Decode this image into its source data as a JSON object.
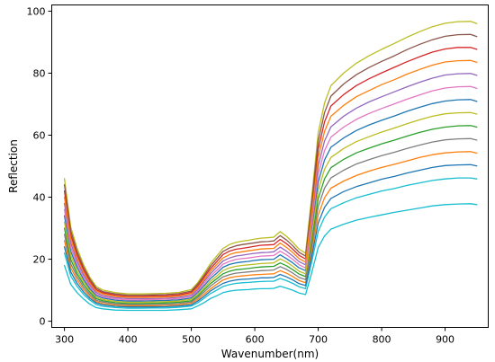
{
  "chart_data": {
    "type": "line",
    "xlabel": "Wavenumber(nm)",
    "ylabel": "Reflection",
    "xlim": [
      280,
      968
    ],
    "ylim": [
      -2,
      102
    ],
    "xticks": [
      300,
      400,
      500,
      600,
      700,
      800,
      900
    ],
    "yticks": [
      0,
      20,
      40,
      60,
      80,
      100
    ],
    "grid": false,
    "legend": "none",
    "x": [
      300,
      310,
      320,
      330,
      340,
      350,
      360,
      380,
      400,
      420,
      440,
      460,
      480,
      500,
      510,
      520,
      530,
      540,
      550,
      560,
      570,
      580,
      590,
      600,
      610,
      620,
      630,
      640,
      650,
      660,
      670,
      680,
      690,
      700,
      710,
      720,
      740,
      760,
      780,
      800,
      820,
      840,
      860,
      880,
      900,
      920,
      940,
      950
    ],
    "series": [
      {
        "color": "#bcbd22",
        "values": [
          46.0,
          30.4,
          23.5,
          18.3,
          14.2,
          11.2,
          10.1,
          9.2,
          8.8,
          8.8,
          8.9,
          9.0,
          9.3,
          10.2,
          12.4,
          15.4,
          18.5,
          21.0,
          23.5,
          24.7,
          25.4,
          25.8,
          26.1,
          26.5,
          26.8,
          26.9,
          27.1,
          28.9,
          27.4,
          25.4,
          23.2,
          22.0,
          40.5,
          60.8,
          70.4,
          76.0,
          80.0,
          83.2,
          85.6,
          87.7,
          89.6,
          91.6,
          93.4,
          95.0,
          96.1,
          96.6,
          96.7,
          96.0
        ]
      },
      {
        "color": "#d62728",
        "values": [
          42.0,
          27.8,
          21.4,
          16.7,
          12.9,
          10.2,
          9.2,
          8.4,
          8.0,
          8.0,
          8.1,
          8.2,
          8.5,
          9.3,
          11.3,
          14.1,
          16.9,
          19.2,
          21.5,
          22.6,
          23.2,
          23.5,
          23.8,
          24.2,
          24.5,
          24.6,
          24.7,
          26.4,
          25.0,
          23.2,
          21.2,
          20.1,
          37.0,
          55.5,
          64.3,
          69.4,
          73.1,
          76.0,
          78.2,
          80.1,
          81.9,
          83.7,
          85.3,
          86.8,
          87.8,
          88.3,
          88.3,
          87.7
        ]
      },
      {
        "color": "#9467bd",
        "values": [
          38.0,
          25.2,
          19.4,
          15.1,
          11.7,
          9.3,
          8.3,
          7.6,
          7.3,
          7.3,
          7.3,
          7.4,
          7.7,
          8.4,
          10.2,
          12.8,
          15.3,
          17.4,
          19.4,
          20.4,
          21.0,
          21.3,
          21.6,
          21.9,
          22.1,
          22.2,
          22.4,
          23.9,
          22.6,
          21.0,
          19.2,
          18.2,
          33.4,
          50.2,
          58.1,
          62.7,
          66.1,
          68.7,
          70.7,
          72.4,
          74.0,
          75.6,
          77.1,
          78.4,
          79.4,
          79.8,
          79.9,
          79.3
        ]
      },
      {
        "color": "#1f77b4",
        "values": [
          34.0,
          22.5,
          17.4,
          13.5,
          10.5,
          8.3,
          7.5,
          6.8,
          6.5,
          6.5,
          6.6,
          6.7,
          6.9,
          7.5,
          9.2,
          11.4,
          13.7,
          15.5,
          17.4,
          18.3,
          18.8,
          19.1,
          19.3,
          19.6,
          19.8,
          19.9,
          20.0,
          21.4,
          20.2,
          18.8,
          17.2,
          16.3,
          29.9,
          44.9,
          52.0,
          56.1,
          59.1,
          61.5,
          63.3,
          64.8,
          66.2,
          67.7,
          69.0,
          70.2,
          71.0,
          71.4,
          71.5,
          70.9
        ]
      },
      {
        "color": "#2ca02c",
        "values": [
          30.0,
          19.9,
          15.3,
          11.9,
          9.3,
          7.3,
          6.6,
          6.0,
          5.7,
          5.7,
          5.8,
          5.9,
          6.1,
          6.6,
          8.1,
          10.1,
          12.1,
          13.7,
          15.3,
          16.1,
          16.6,
          16.8,
          17.0,
          17.3,
          17.5,
          17.6,
          17.7,
          18.8,
          17.9,
          16.6,
          15.2,
          14.4,
          26.4,
          39.6,
          45.9,
          49.5,
          52.2,
          54.3,
          55.8,
          57.2,
          58.4,
          59.7,
          60.9,
          61.9,
          62.6,
          63.0,
          63.1,
          62.6
        ]
      },
      {
        "color": "#ff7f0e",
        "values": [
          26.0,
          17.2,
          13.3,
          10.3,
          8.0,
          6.3,
          5.7,
          5.2,
          5.0,
          5.0,
          5.0,
          5.1,
          5.3,
          5.8,
          7.0,
          8.7,
          10.4,
          11.9,
          13.3,
          14.0,
          14.4,
          14.6,
          14.8,
          15.0,
          15.1,
          15.2,
          15.3,
          16.3,
          15.5,
          14.4,
          13.1,
          12.4,
          22.9,
          34.3,
          39.8,
          42.9,
          45.2,
          47.0,
          48.4,
          49.6,
          50.6,
          51.7,
          52.8,
          53.7,
          54.3,
          54.6,
          54.7,
          54.2
        ]
      },
      {
        "color": "#17becf",
        "values": [
          22.0,
          14.6,
          11.2,
          8.7,
          6.8,
          5.4,
          4.8,
          4.4,
          4.2,
          4.2,
          4.3,
          4.3,
          4.5,
          4.9,
          5.9,
          7.4,
          8.9,
          10.0,
          11.2,
          11.8,
          12.2,
          12.4,
          12.5,
          12.7,
          12.8,
          12.9,
          12.9,
          13.8,
          13.1,
          12.2,
          11.1,
          10.5,
          19.3,
          29.0,
          33.6,
          36.3,
          38.2,
          39.8,
          40.9,
          42.0,
          42.8,
          43.8,
          44.6,
          45.4,
          45.9,
          46.2,
          46.2,
          45.9
        ]
      },
      {
        "color": "#8c564b",
        "values": [
          44.0,
          29.1,
          22.4,
          17.5,
          13.6,
          10.7,
          9.6,
          8.8,
          8.4,
          8.4,
          8.5,
          8.6,
          8.9,
          9.7,
          11.9,
          14.7,
          17.7,
          20.1,
          22.5,
          23.6,
          24.3,
          24.7,
          25.0,
          25.3,
          25.6,
          25.7,
          25.9,
          27.6,
          26.2,
          24.3,
          22.2,
          21.0,
          38.7,
          58.1,
          67.3,
          72.6,
          76.5,
          79.5,
          81.8,
          83.8,
          85.6,
          87.6,
          89.3,
          90.8,
          91.9,
          92.4,
          92.5,
          91.8
        ]
      },
      {
        "color": "#e377c2",
        "values": [
          36.0,
          23.8,
          18.4,
          14.3,
          11.1,
          8.8,
          7.9,
          7.2,
          6.9,
          6.9,
          7.0,
          7.1,
          7.3,
          8.0,
          9.7,
          12.1,
          14.5,
          16.4,
          18.4,
          19.3,
          19.9,
          20.2,
          20.4,
          20.7,
          21.0,
          21.1,
          21.2,
          22.6,
          21.4,
          19.9,
          18.2,
          17.2,
          31.6,
          47.5,
          55.0,
          59.4,
          62.6,
          65.1,
          67.0,
          68.6,
          70.1,
          71.6,
          73.0,
          74.3,
          75.2,
          75.6,
          75.7,
          75.1
        ]
      },
      {
        "color": "#7f7f7f",
        "values": [
          28.0,
          18.5,
          14.3,
          11.1,
          8.6,
          6.8,
          6.2,
          5.6,
          5.4,
          5.4,
          5.4,
          5.5,
          5.7,
          6.2,
          7.6,
          9.4,
          11.3,
          12.8,
          14.3,
          15.0,
          15.5,
          15.7,
          15.9,
          16.1,
          16.3,
          16.4,
          16.5,
          17.6,
          16.7,
          15.5,
          14.1,
          13.4,
          24.6,
          37.0,
          42.9,
          46.2,
          48.7,
          50.7,
          52.1,
          53.4,
          54.5,
          55.7,
          56.8,
          57.8,
          58.5,
          58.8,
          58.9,
          58.4
        ]
      },
      {
        "color": "#bcbd22",
        "values": [
          32.0,
          21.2,
          16.3,
          12.7,
          9.9,
          7.8,
          7.0,
          6.4,
          6.1,
          6.1,
          6.2,
          6.3,
          6.5,
          7.1,
          8.6,
          10.7,
          12.9,
          14.6,
          16.3,
          17.2,
          17.7,
          18.0,
          18.2,
          18.4,
          18.6,
          18.7,
          18.8,
          20.1,
          19.1,
          17.7,
          16.1,
          15.3,
          28.1,
          42.3,
          49.0,
          52.8,
          55.7,
          57.9,
          59.5,
          61.0,
          62.3,
          63.7,
          65.0,
          66.1,
          66.9,
          67.2,
          67.3,
          66.8
        ]
      },
      {
        "color": "#ff7f0e",
        "values": [
          40.0,
          26.5,
          20.4,
          15.9,
          12.3,
          9.8,
          8.8,
          8.0,
          7.7,
          7.7,
          7.7,
          7.8,
          8.1,
          8.9,
          10.8,
          13.4,
          16.1,
          18.3,
          20.4,
          21.5,
          22.1,
          22.4,
          22.7,
          23.0,
          23.3,
          23.4,
          23.5,
          25.2,
          23.8,
          22.1,
          20.2,
          19.1,
          35.2,
          52.8,
          61.2,
          66.1,
          69.6,
          72.4,
          74.4,
          76.3,
          77.9,
          79.7,
          81.2,
          82.6,
          83.6,
          84.0,
          84.1,
          83.5
        ]
      },
      {
        "color": "#1f77b4",
        "values": [
          24.0,
          15.9,
          12.2,
          9.5,
          7.4,
          5.9,
          5.3,
          4.8,
          4.6,
          4.6,
          4.6,
          4.7,
          4.9,
          5.3,
          6.5,
          8.0,
          9.7,
          11.0,
          12.2,
          12.9,
          13.3,
          13.5,
          13.6,
          13.8,
          14.0,
          14.0,
          14.1,
          15.1,
          14.3,
          13.3,
          12.1,
          11.5,
          21.1,
          31.7,
          36.7,
          39.6,
          41.8,
          43.4,
          44.6,
          45.8,
          46.7,
          47.8,
          48.7,
          49.6,
          50.2,
          50.4,
          50.5,
          50.1
        ]
      },
      {
        "color": "#17becf",
        "values": [
          18.0,
          11.9,
          9.2,
          7.2,
          5.5,
          4.4,
          4.0,
          3.6,
          3.5,
          3.5,
          3.5,
          3.5,
          3.7,
          4.0,
          4.9,
          6.0,
          7.3,
          8.2,
          9.2,
          9.7,
          10.0,
          10.1,
          10.2,
          10.4,
          10.5,
          10.5,
          10.6,
          11.3,
          10.7,
          10.0,
          9.1,
          8.6,
          15.8,
          23.8,
          27.5,
          29.7,
          31.3,
          32.6,
          33.5,
          34.3,
          35.1,
          35.8,
          36.5,
          37.2,
          37.6,
          37.8,
          37.9,
          37.6
        ]
      }
    ]
  }
}
